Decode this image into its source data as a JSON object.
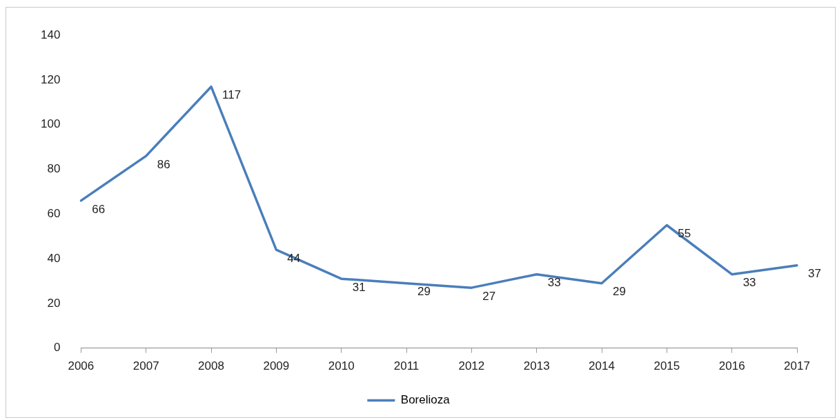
{
  "chart_data": {
    "type": "line",
    "categories": [
      "2006",
      "2007",
      "2008",
      "2009",
      "2010",
      "2011",
      "2012",
      "2013",
      "2014",
      "2015",
      "2016",
      "2017"
    ],
    "series": [
      {
        "name": "Borelioza",
        "color": "#4a7ebb",
        "values": [
          66,
          86,
          117,
          44,
          31,
          29,
          27,
          33,
          29,
          55,
          33,
          37
        ]
      }
    ],
    "ylim": [
      0,
      140
    ],
    "yticks": [
      0,
      20,
      40,
      60,
      80,
      100,
      120,
      140
    ],
    "data_labels": true,
    "legend": "bottom",
    "marker": "none",
    "line_style": "solid",
    "grid": false
  }
}
